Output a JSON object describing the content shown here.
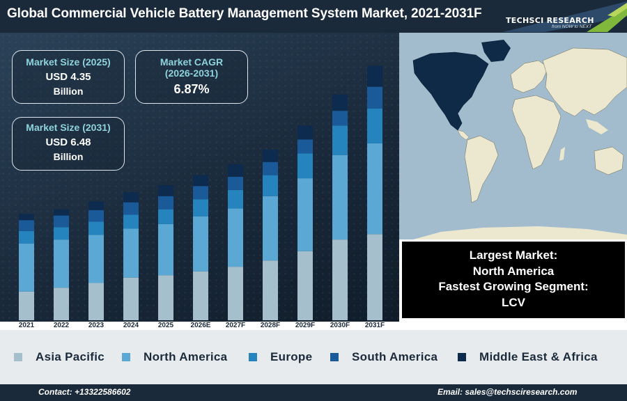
{
  "header": {
    "title": "Global Commercial Vehicle Battery Management System Market, 2021-2031F",
    "logo_word": "TECHSCI RESEARCH",
    "logo_tagline": "from NOW to NEXT"
  },
  "kpis": {
    "size_2025": {
      "label": "Market Size (2025)",
      "value": "USD 4.35",
      "unit": "Billion"
    },
    "cagr": {
      "label_line1": "Market CAGR",
      "label_line2": "(2026-2031)",
      "value": "6.87%"
    },
    "size_2031": {
      "label": "Market Size (2031)",
      "value": "USD 6.48",
      "unit": "Billion"
    }
  },
  "info_box": {
    "line1": "Largest Market:",
    "line2": "North America",
    "line3": "Fastest Growing Segment:",
    "line4": "LCV"
  },
  "colors": {
    "asia_pacific": "#a6bfcc",
    "north_america": "#5aa8d3",
    "europe": "#2583bd",
    "south_america": "#1a5a99",
    "middle_east_africa": "#0d2b4e",
    "header_bg": "#1b2a3a",
    "kpi_label": "#8fd3dc",
    "map_ocean": "#a2bccd",
    "map_land": "#ece7cf",
    "map_highlight": "#0f2a47"
  },
  "chart_data": {
    "type": "bar",
    "stacked": true,
    "categories": [
      "2021",
      "2022",
      "2023",
      "2024",
      "2025",
      "2026E",
      "2027F",
      "2028F",
      "2029F",
      "2030F",
      "2031F"
    ],
    "series": [
      {
        "name": "Asia Pacific",
        "values": [
          37,
          42,
          48,
          55,
          58,
          63,
          69,
          77,
          89,
          104,
          111
        ]
      },
      {
        "name": "North America",
        "values": [
          62,
          62,
          62,
          63,
          66,
          71,
          75,
          83,
          94,
          109,
          117
        ]
      },
      {
        "name": "Europe",
        "values": [
          16,
          16,
          17,
          18,
          19,
          22,
          24,
          27,
          32,
          38,
          45
        ]
      },
      {
        "name": "South America",
        "values": [
          14,
          15,
          15,
          16,
          17,
          17,
          17,
          17,
          18,
          19,
          28
        ]
      },
      {
        "name": "Middle East & Africa",
        "values": [
          8,
          8,
          11,
          13,
          14,
          14,
          16,
          16,
          18,
          21,
          27
        ]
      }
    ],
    "title": "",
    "xlabel": "",
    "ylabel": "",
    "ylim": [
      0,
      350
    ],
    "grid": false,
    "legend_position": "bottom"
  },
  "footer": {
    "contact": "Contact: +13322586602",
    "email": "Email: sales@techsciresearch.com"
  }
}
